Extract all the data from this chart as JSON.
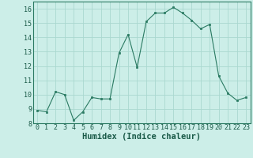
{
  "xlabel": "Humidex (Indice chaleur)",
  "x": [
    0,
    1,
    2,
    3,
    4,
    5,
    6,
    7,
    8,
    9,
    10,
    11,
    12,
    13,
    14,
    15,
    16,
    17,
    18,
    19,
    20,
    21,
    22,
    23
  ],
  "y": [
    8.9,
    8.8,
    10.2,
    10.0,
    8.2,
    8.8,
    9.8,
    9.7,
    9.7,
    12.9,
    14.2,
    11.9,
    15.1,
    15.7,
    15.7,
    16.1,
    15.7,
    15.2,
    14.6,
    14.9,
    11.3,
    10.1,
    9.6,
    9.8
  ],
  "line_color": "#2a7a62",
  "marker": "s",
  "marker_size": 2,
  "bg_color": "#cceee8",
  "grid_color": "#aad8d0",
  "ylim": [
    8,
    16.5
  ],
  "yticks": [
    8,
    9,
    10,
    11,
    12,
    13,
    14,
    15,
    16
  ],
  "xticks": [
    0,
    1,
    2,
    3,
    4,
    5,
    6,
    7,
    8,
    9,
    10,
    11,
    12,
    13,
    14,
    15,
    16,
    17,
    18,
    19,
    20,
    21,
    22,
    23
  ],
  "tick_label_fontsize": 6,
  "xlabel_fontsize": 7.5
}
